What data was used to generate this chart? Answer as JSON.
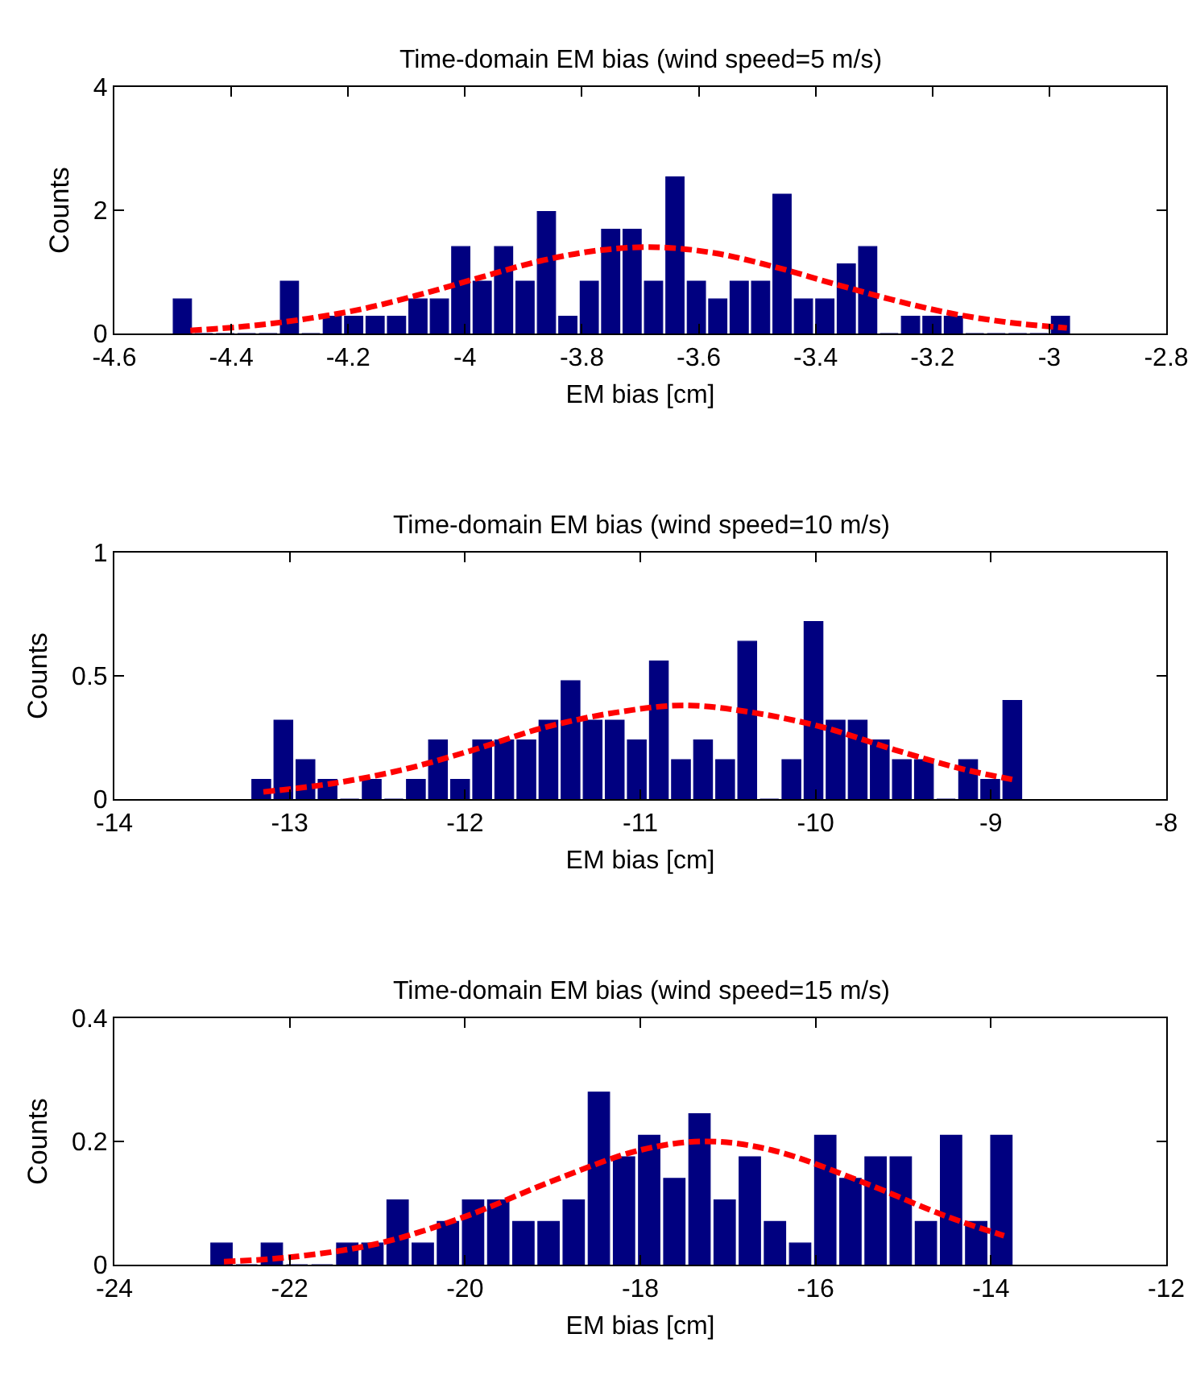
{
  "chart_data": [
    {
      "type": "histogram",
      "title": "Time-domain EM bias (wind speed=5 m/s)",
      "xlabel": "EM bias [cm]",
      "ylabel": "Counts",
      "bins": [
        -4.502,
        -4.4653,
        -4.4287,
        -4.392,
        -4.3554,
        -4.3187,
        -4.2821,
        -4.2454,
        -4.2088,
        -4.1721,
        -4.1355,
        -4.0988,
        -4.0622,
        -4.0255,
        -3.9889,
        -3.9522,
        -3.9156,
        -3.8789,
        -3.8423,
        -3.8056,
        -3.769,
        -3.7323,
        -3.6957,
        -3.659,
        -3.6224,
        -3.5857,
        -3.5491,
        -3.5124,
        -3.4758,
        -3.4391,
        -3.4025,
        -3.3658,
        -3.3292,
        -3.2925,
        -3.2559,
        -3.2192,
        -3.1826,
        -3.1459,
        -3.1093,
        -3.0726,
        -3.036,
        -2.9993,
        -2.9627
      ],
      "series": [
        {
          "color": "#000080",
          "values": [
            0.56,
            0,
            0,
            0,
            0,
            0.85,
            0,
            0.28,
            0.28,
            0.28,
            0.28,
            0.56,
            0.56,
            1.41,
            0.85,
            1.41,
            0.85,
            1.98,
            0.28,
            0.85,
            1.69,
            1.69,
            0.85,
            2.54,
            0.85,
            0.56,
            0.85,
            0.85,
            2.26,
            0.56,
            0.56,
            1.13,
            1.41,
            0,
            0.28,
            0.28,
            0.28,
            0,
            0,
            0,
            0,
            0.28
          ]
        },
        {
          "type": "line",
          "color": "#ff0000",
          "line_style": "dashed",
          "x": [
            -4.47,
            -4.37,
            -4.27,
            -4.17,
            -4.07,
            -3.97,
            -3.87,
            -3.77,
            -3.67,
            -3.57,
            -3.47,
            -3.37,
            -3.27,
            -3.17,
            -3.07,
            -2.97
          ],
          "values": [
            0.05,
            0.12,
            0.24,
            0.41,
            0.65,
            0.92,
            1.18,
            1.35,
            1.4,
            1.3,
            1.08,
            0.81,
            0.55,
            0.33,
            0.18,
            0.09
          ]
        }
      ],
      "xlim": [
        -4.6,
        -2.8
      ],
      "xticks": [
        -4.6,
        -4.4,
        -4.2,
        -4,
        -3.8,
        -3.6,
        -3.4,
        -3.2,
        -3,
        -2.8
      ],
      "ylim": [
        0,
        4
      ],
      "yticks": [
        0,
        2,
        4
      ],
      "grid": false,
      "legend": false
    },
    {
      "type": "histogram",
      "title": "Time-domain EM bias (wind speed=10 m/s)",
      "xlabel": "EM bias [cm]",
      "ylabel": "Counts",
      "bins": [
        -13.225,
        -13.099,
        -12.973,
        -12.847,
        -12.721,
        -12.595,
        -12.469,
        -12.343,
        -12.217,
        -12.091,
        -11.965,
        -11.839,
        -11.713,
        -11.587,
        -11.461,
        -11.335,
        -11.209,
        -11.083,
        -10.957,
        -10.831,
        -10.705,
        -10.579,
        -10.453,
        -10.327,
        -10.201,
        -10.075,
        -9.949,
        -9.823,
        -9.697,
        -9.571,
        -9.445,
        -9.319,
        -9.193,
        -9.067,
        -8.941,
        -8.815
      ],
      "series": [
        {
          "color": "#000080",
          "values": [
            0.08,
            0.32,
            0.16,
            0.08,
            0,
            0.08,
            0,
            0.08,
            0.24,
            0.08,
            0.24,
            0.24,
            0.24,
            0.32,
            0.48,
            0.32,
            0.32,
            0.24,
            0.56,
            0.16,
            0.24,
            0.16,
            0.64,
            0,
            0.16,
            0.72,
            0.32,
            0.32,
            0.24,
            0.16,
            0.16,
            0,
            0.16,
            0.08,
            0.4
          ]
        },
        {
          "type": "line",
          "color": "#ff0000",
          "line_style": "dashed",
          "x": [
            -13.15,
            -12.75,
            -12.35,
            -11.95,
            -11.55,
            -11.15,
            -10.75,
            -10.35,
            -9.95,
            -9.55,
            -9.15,
            -8.85
          ],
          "values": [
            0.029,
            0.064,
            0.12,
            0.2,
            0.29,
            0.35,
            0.38,
            0.35,
            0.29,
            0.2,
            0.12,
            0.076
          ]
        }
      ],
      "xlim": [
        -14,
        -8
      ],
      "xticks": [
        -14,
        -13,
        -12,
        -11,
        -10,
        -9,
        -8
      ],
      "ylim": [
        0,
        1
      ],
      "yticks": [
        0,
        0.5,
        1
      ],
      "grid": false,
      "legend": false
    },
    {
      "type": "histogram",
      "title": "Time-domain EM bias (wind speed=15 m/s)",
      "xlabel": "EM bias [cm]",
      "ylabel": "Counts",
      "bins": [
        -22.921,
        -22.634,
        -22.347,
        -22.06,
        -21.773,
        -21.486,
        -21.199,
        -20.912,
        -20.625,
        -20.338,
        -20.051,
        -19.764,
        -19.477,
        -19.19,
        -18.903,
        -18.616,
        -18.329,
        -18.042,
        -17.755,
        -17.468,
        -17.181,
        -16.894,
        -16.607,
        -16.32,
        -16.033,
        -15.746,
        -15.459,
        -15.172,
        -14.885,
        -14.598,
        -14.311,
        -14.024,
        -13.737
      ],
      "series": [
        {
          "color": "#000080",
          "values": [
            0.035,
            0,
            0.035,
            0,
            0,
            0.035,
            0.035,
            0.105,
            0.035,
            0.07,
            0.105,
            0.105,
            0.07,
            0.07,
            0.105,
            0.28,
            0.175,
            0.21,
            0.14,
            0.245,
            0.105,
            0.175,
            0.07,
            0.035,
            0.21,
            0.14,
            0.175,
            0.175,
            0.07,
            0.21,
            0.07,
            0.21
          ]
        },
        {
          "type": "line",
          "color": "#ff0000",
          "line_style": "dashed",
          "x": [
            -22.75,
            -22,
            -21,
            -20,
            -19,
            -18,
            -17.25,
            -16.5,
            -15.5,
            -14.5,
            -13.85
          ],
          "values": [
            0.005,
            0.012,
            0.034,
            0.078,
            0.136,
            0.186,
            0.2,
            0.186,
            0.136,
            0.078,
            0.047
          ]
        }
      ],
      "xlim": [
        -24,
        -12
      ],
      "xticks": [
        -24,
        -22,
        -20,
        -18,
        -16,
        -14,
        -12
      ],
      "ylim": [
        0,
        0.4
      ],
      "yticks": [
        0,
        0.2,
        0.4
      ],
      "grid": false,
      "legend": false
    }
  ]
}
